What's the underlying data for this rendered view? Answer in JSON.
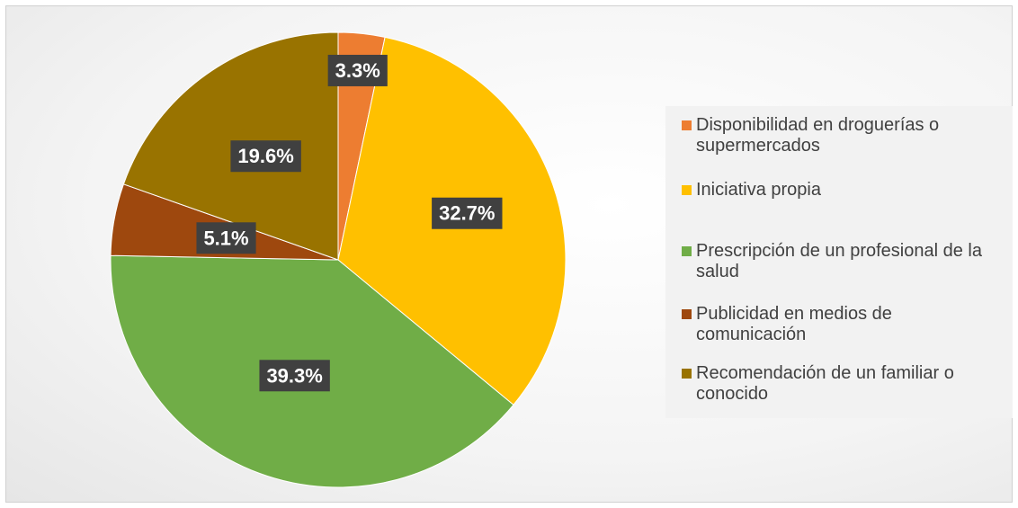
{
  "chart_data": {
    "type": "pie",
    "categories": [
      "Disponibilidad en droguerías o supermercados",
      "Iniciativa propia",
      "Prescripción de un profesional de la salud",
      "Publicidad en medios de comunicación",
      "Recomendación de un familiar o conocido"
    ],
    "values": [
      3.3,
      32.7,
      39.3,
      5.1,
      19.6
    ],
    "value_labels": [
      "3.3%",
      "32.7%",
      "39.3%",
      "5.1%",
      "19.6%"
    ],
    "colors": [
      "#ed7d31",
      "#ffc000",
      "#70ad47",
      "#9e480e",
      "#997300"
    ],
    "legend": "right"
  }
}
